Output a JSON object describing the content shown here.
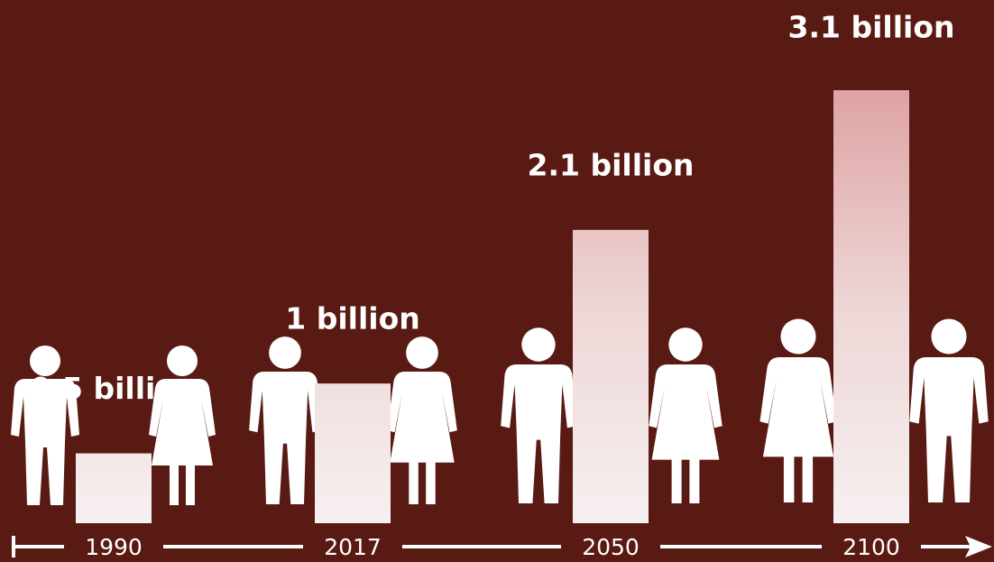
{
  "chart_data": {
    "type": "bar",
    "categories": [
      "1990",
      "2017",
      "2050",
      "2100"
    ],
    "values": [
      0.5,
      1,
      2.1,
      3.1
    ],
    "value_labels": [
      "0.5 billion",
      "1 billion",
      "2.1 billion",
      "3.1 billion"
    ],
    "color": "#f3e9e9"
  }
}
